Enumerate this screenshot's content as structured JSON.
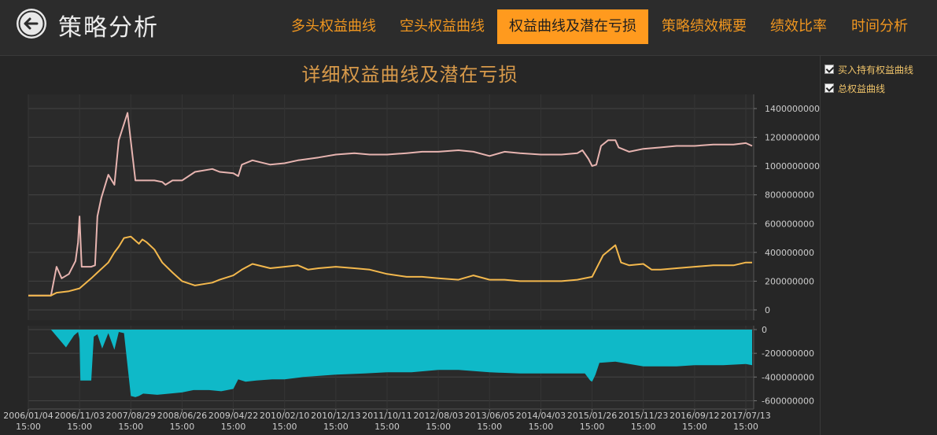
{
  "header": {
    "title": "策略分析",
    "tabs": [
      {
        "label": "多头权益曲线",
        "active": false
      },
      {
        "label": "空头权益曲线",
        "active": false
      },
      {
        "label": "权益曲线及潜在亏损",
        "active": true
      },
      {
        "label": "策略绩效概要",
        "active": false
      },
      {
        "label": "绩效比率",
        "active": false
      },
      {
        "label": "时间分析",
        "active": false
      }
    ]
  },
  "legend": {
    "buy_hold_label": "买入持有权益曲线",
    "total_label": "总权益曲线"
  },
  "colors": {
    "accent": "#ff9a1e",
    "buy_hold_line": "#e7b4b0",
    "total_line": "#f3b84d",
    "drawdown_fill": "#0fb9c8"
  },
  "chart_data": [
    {
      "type": "line",
      "title": "详细权益曲线及潜在亏损",
      "xlabel": "",
      "ylabel": "",
      "ylim": [
        0,
        1400000000
      ],
      "y_ticks": [
        0,
        200000000,
        400000000,
        600000000,
        800000000,
        1000000000,
        1200000000,
        1400000000
      ],
      "x_ticks": [
        {
          "date": "2006/01/04",
          "time": "15:00"
        },
        {
          "date": "2006/11/03",
          "time": "15:00"
        },
        {
          "date": "2007/08/29",
          "time": "15:00"
        },
        {
          "date": "2008/06/26",
          "time": "15:00"
        },
        {
          "date": "2009/04/22",
          "time": "15:00"
        },
        {
          "date": "2010/02/10",
          "time": "15:00"
        },
        {
          "date": "2010/12/13",
          "time": "15:00"
        },
        {
          "date": "2011/10/11",
          "time": "15:00"
        },
        {
          "date": "2012/08/03",
          "time": "15:00"
        },
        {
          "date": "2013/06/05",
          "time": "15:00"
        },
        {
          "date": "2014/04/03",
          "time": "15:00"
        },
        {
          "date": "2015/01/26",
          "time": "15:00"
        },
        {
          "date": "2015/11/23",
          "time": "15:00"
        },
        {
          "date": "2016/09/12",
          "time": "15:00"
        },
        {
          "date": "2017/07/13",
          "time": "15:00"
        }
      ],
      "grid": true,
      "legend": "right-side-panel",
      "series": [
        {
          "name": "买入持有权益曲线",
          "x": [
            "2006/01/04",
            "2006/05/18",
            "2006/06/20",
            "2006/07/20",
            "2006/09/01",
            "2006/10/10",
            "2006/10/25",
            "2006/11/03",
            "2006/11/15",
            "2007/01/10",
            "2007/02/01",
            "2007/02/15",
            "2007/03/10",
            "2007/04/20",
            "2007/05/25",
            "2007/06/20",
            "2007/08/10",
            "2007/09/25",
            "2007/10/16",
            "2007/11/05",
            "2008/01/15",
            "2008/03/01",
            "2008/03/20",
            "2008/05/01",
            "2008/06/26",
            "2008/09/10",
            "2008/12/20",
            "2009/02/01",
            "2009/04/22",
            "2009/05/20",
            "2009/06/10",
            "2009/08/10",
            "2009/11/20",
            "2010/02/10",
            "2010/05/01",
            "2010/09/01",
            "2010/12/13",
            "2011/04/01",
            "2011/07/01",
            "2011/10/11",
            "2012/02/01",
            "2012/05/01",
            "2012/08/03",
            "2012/12/01",
            "2013/03/01",
            "2013/06/05",
            "2013/09/01",
            "2013/12/01",
            "2014/04/03",
            "2014/08/01",
            "2014/11/01",
            "2014/12/01",
            "2015/01/05",
            "2015/01/26",
            "2015/02/20",
            "2015/03/20",
            "2015/05/01",
            "2015/06/12",
            "2015/07/01",
            "2015/09/01",
            "2015/11/23",
            "2016/03/01",
            "2016/06/01",
            "2016/09/12",
            "2017/01/01",
            "2017/05/01",
            "2017/07/13",
            "2017/09/01"
          ],
          "values": [
            100000000,
            100000000,
            300000000,
            220000000,
            250000000,
            340000000,
            470000000,
            650000000,
            300000000,
            300000000,
            310000000,
            650000000,
            780000000,
            940000000,
            870000000,
            1180000000,
            1370000000,
            900000000,
            900000000,
            900000000,
            900000000,
            890000000,
            870000000,
            900000000,
            900000000,
            960000000,
            980000000,
            960000000,
            950000000,
            930000000,
            1010000000,
            1040000000,
            1010000000,
            1020000000,
            1040000000,
            1060000000,
            1080000000,
            1090000000,
            1080000000,
            1080000000,
            1090000000,
            1100000000,
            1100000000,
            1110000000,
            1100000000,
            1070000000,
            1100000000,
            1090000000,
            1080000000,
            1080000000,
            1090000000,
            1110000000,
            1050000000,
            1000000000,
            1010000000,
            1140000000,
            1180000000,
            1180000000,
            1130000000,
            1100000000,
            1120000000,
            1130000000,
            1140000000,
            1140000000,
            1150000000,
            1150000000,
            1160000000,
            1140000000
          ]
        },
        {
          "name": "总权益曲线",
          "x": [
            "2006/01/04",
            "2006/05/18",
            "2006/06/20",
            "2006/09/01",
            "2006/11/03",
            "2007/01/10",
            "2007/02/15",
            "2007/04/20",
            "2007/05/25",
            "2007/06/20",
            "2007/07/20",
            "2007/08/29",
            "2007/10/16",
            "2007/11/05",
            "2007/12/01",
            "2008/01/15",
            "2008/03/01",
            "2008/05/01",
            "2008/06/26",
            "2008/09/10",
            "2008/12/20",
            "2009/02/01",
            "2009/04/22",
            "2009/06/10",
            "2009/08/10",
            "2009/11/20",
            "2010/02/10",
            "2010/05/01",
            "2010/07/01",
            "2010/09/01",
            "2010/12/13",
            "2011/04/01",
            "2011/07/01",
            "2011/10/11",
            "2012/02/01",
            "2012/05/01",
            "2012/08/03",
            "2012/12/01",
            "2013/03/01",
            "2013/06/05",
            "2013/09/01",
            "2013/12/01",
            "2014/04/03",
            "2014/08/01",
            "2014/11/01",
            "2015/01/26",
            "2015/04/01",
            "2015/06/12",
            "2015/07/15",
            "2015/09/01",
            "2015/11/23",
            "2016/01/10",
            "2016/03/01",
            "2016/06/01",
            "2016/09/12",
            "2017/01/01",
            "2017/05/01",
            "2017/07/13",
            "2017/09/01"
          ],
          "values": [
            100000000,
            100000000,
            120000000,
            130000000,
            150000000,
            220000000,
            260000000,
            330000000,
            400000000,
            440000000,
            500000000,
            510000000,
            460000000,
            490000000,
            470000000,
            420000000,
            330000000,
            260000000,
            200000000,
            170000000,
            190000000,
            210000000,
            240000000,
            280000000,
            320000000,
            290000000,
            300000000,
            310000000,
            280000000,
            290000000,
            300000000,
            290000000,
            280000000,
            250000000,
            230000000,
            230000000,
            220000000,
            210000000,
            240000000,
            210000000,
            210000000,
            200000000,
            200000000,
            200000000,
            210000000,
            230000000,
            380000000,
            450000000,
            330000000,
            310000000,
            320000000,
            280000000,
            280000000,
            290000000,
            300000000,
            310000000,
            310000000,
            330000000,
            330000000
          ]
        }
      ]
    },
    {
      "type": "area",
      "title": "",
      "xlabel": "",
      "ylabel": "",
      "ylim": [
        -650000000,
        0
      ],
      "y_ticks": [
        0,
        -200000000,
        -400000000,
        -600000000
      ],
      "series": [
        {
          "name": "",
          "x": [
            "2006/01/04",
            "2006/05/18",
            "2006/08/15",
            "2006/10/01",
            "2006/10/25",
            "2006/11/03",
            "2006/11/08",
            "2007/01/10",
            "2007/01/25",
            "2007/02/15",
            "2007/03/15",
            "2007/04/20",
            "2007/05/25",
            "2007/06/20",
            "2007/07/20",
            "2007/08/29",
            "2007/09/25",
            "2007/10/16",
            "2007/11/10",
            "2008/02/01",
            "2008/06/26",
            "2008/09/01",
            "2008/12/01",
            "2009/02/10",
            "2009/04/22",
            "2009/05/20",
            "2009/07/01",
            "2009/09/01",
            "2009/12/01",
            "2010/02/10",
            "2010/06/01",
            "2010/12/13",
            "2011/06/01",
            "2011/10/11",
            "2012/03/01",
            "2012/08/03",
            "2012/12/01",
            "2013/06/05",
            "2013/12/01",
            "2014/04/03",
            "2014/09/01",
            "2014/12/15",
            "2015/01/15",
            "2015/01/26",
            "2015/02/15",
            "2015/03/10",
            "2015/06/12",
            "2015/11/23",
            "2016/06/01",
            "2016/09/12",
            "2017/03/01",
            "2017/07/13",
            "2017/09/01"
          ],
          "values": [
            0,
            0,
            -150000000,
            -50000000,
            -20000000,
            -80000000,
            -430000000,
            -430000000,
            -60000000,
            -40000000,
            -160000000,
            -30000000,
            -170000000,
            -20000000,
            -30000000,
            -560000000,
            -570000000,
            -560000000,
            -540000000,
            -550000000,
            -530000000,
            -510000000,
            -510000000,
            -520000000,
            -500000000,
            -420000000,
            -440000000,
            -430000000,
            -420000000,
            -420000000,
            -400000000,
            -380000000,
            -370000000,
            -360000000,
            -360000000,
            -340000000,
            -340000000,
            -360000000,
            -370000000,
            -370000000,
            -370000000,
            -370000000,
            -430000000,
            -440000000,
            -380000000,
            -280000000,
            -270000000,
            -310000000,
            -310000000,
            -300000000,
            -300000000,
            -290000000,
            -300000000
          ]
        }
      ]
    }
  ]
}
